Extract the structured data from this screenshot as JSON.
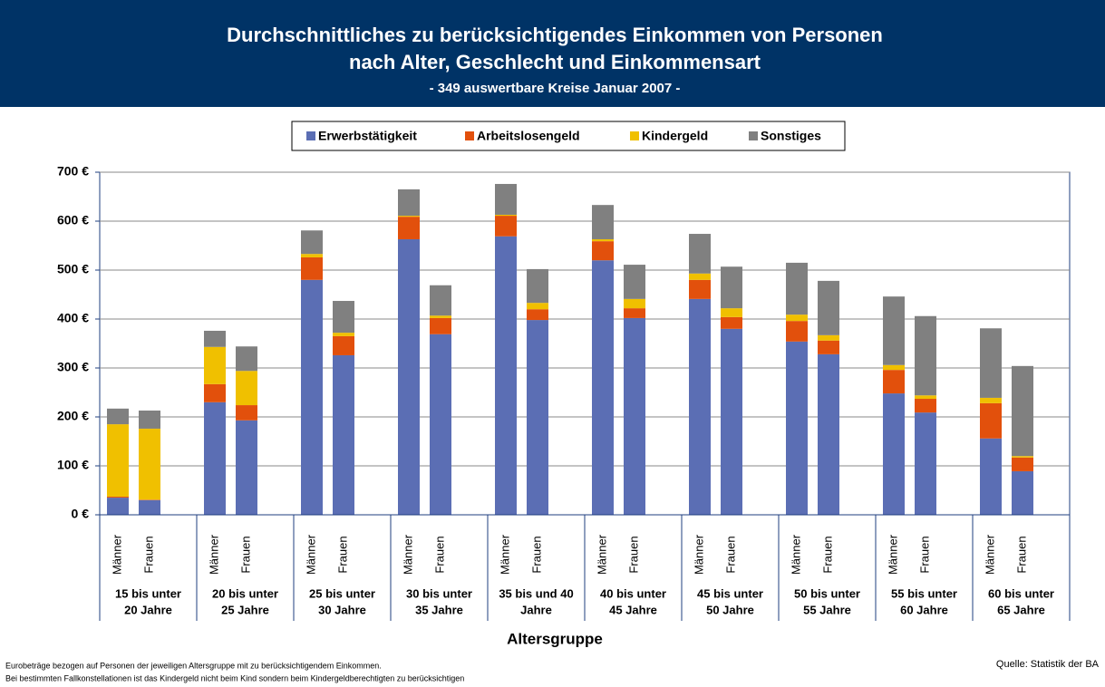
{
  "chart_data": {
    "type": "stacked_bar",
    "title": [
      "Durchschnittliches zu berücksichtigendes Einkommen von Personen",
      "nach Alter, Geschlecht und Einkommensart"
    ],
    "subtitle": "- 349 auswertbare Kreise Januar 2007 -",
    "x_label": "Altersgruppe",
    "categories": [
      "Männer",
      "Frauen",
      "Männer",
      "Frauen",
      "Männer",
      "Frauen",
      "Männer",
      "Frauen",
      "Männer",
      "Frauen",
      "Männer",
      "Frauen",
      "Männer",
      "Frauen",
      "Männer",
      "Frauen",
      "Männer",
      "Frauen",
      "Männer",
      "Frauen"
    ],
    "groups": [
      [
        "15 bis unter",
        "20 Jahre"
      ],
      [
        "20 bis unter",
        "25 Jahre"
      ],
      [
        "25 bis unter",
        "30 Jahre"
      ],
      [
        "30 bis unter",
        "35 Jahre"
      ],
      [
        "35 bis und 40",
        "Jahre"
      ],
      [
        "40 bis unter",
        "45 Jahre"
      ],
      [
        "45 bis unter",
        "50 Jahre"
      ],
      [
        "50 bis unter",
        "55 Jahre"
      ],
      [
        "55 bis unter",
        "60 Jahre"
      ],
      [
        "60 bis unter",
        "65 Jahre"
      ]
    ],
    "series": [
      {
        "name": "Erwerbstätigkeit",
        "color": "#5b6eb4",
        "values": [
          35,
          30,
          230,
          193,
          480,
          326,
          563,
          369,
          569,
          398,
          520,
          402,
          441,
          380,
          354,
          328,
          248,
          209,
          156,
          89
        ]
      },
      {
        "name": "Arbeitslosengeld",
        "color": "#e2500c",
        "values": [
          2,
          1,
          37,
          31,
          46,
          39,
          46,
          33,
          42,
          22,
          39,
          20,
          39,
          24,
          42,
          28,
          48,
          28,
          72,
          28
        ]
      },
      {
        "name": "Kindergeld",
        "color": "#f0c000",
        "values": [
          148,
          145,
          76,
          70,
          7,
          7,
          2,
          5,
          2,
          13,
          4,
          19,
          13,
          18,
          13,
          11,
          10,
          7,
          11,
          3
        ]
      },
      {
        "name": "Sonstiges",
        "color": "#808080",
        "values": [
          32,
          37,
          33,
          50,
          48,
          65,
          54,
          62,
          63,
          69,
          70,
          70,
          81,
          85,
          106,
          111,
          140,
          162,
          142,
          184
        ]
      }
    ],
    "ylim": [
      0,
      700
    ],
    "yticks": [
      {
        "value": 0,
        "label": "0 €"
      },
      {
        "value": 100,
        "label": "100 €"
      },
      {
        "value": 200,
        "label": "200 €"
      },
      {
        "value": 300,
        "label": "300 €"
      },
      {
        "value": 400,
        "label": "400 €"
      },
      {
        "value": 500,
        "label": "500 €"
      },
      {
        "value": 600,
        "label": "600 €"
      },
      {
        "value": 700,
        "label": "700 €"
      }
    ],
    "grid": true,
    "legend": "top",
    "notes": [
      "Eurobeträge bezogen auf Personen der jeweiligen Altersgruppe mit zu berücksichtigendem Einkommen.",
      "Bei bestimmten Fallkonstellationen ist das Kindergeld nicht beim Kind sondern beim Kindergeldberechtigten zu berücksichtigen"
    ],
    "source": "Quelle: Statistik der BA"
  }
}
